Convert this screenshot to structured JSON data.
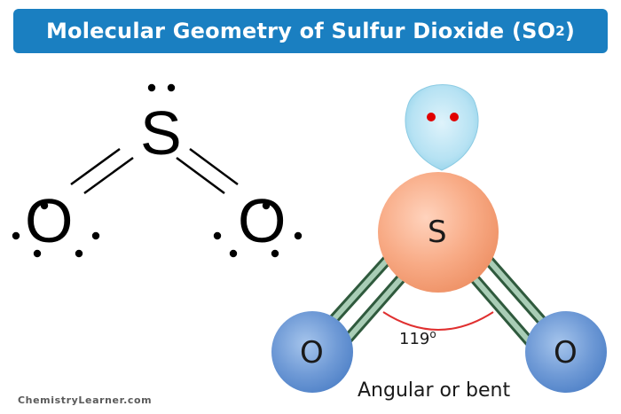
{
  "title": {
    "text": "Molecular Geometry of Sulfur Dioxide (SO",
    "subscript": "2",
    "closing": ")"
  },
  "lewis_structure": {
    "central_atom": "S",
    "left_atom": "O",
    "right_atom": "O"
  },
  "ball_model": {
    "central_atom": "S",
    "left_atom": "O",
    "right_atom": "O",
    "bond_angle": "119",
    "degree_symbol": "o",
    "shape": "Angular or bent"
  },
  "footer": "ChemistryLearner.com",
  "colors": {
    "title_bg": "#1a7fc1",
    "sulfur": "#f5a07a",
    "oxygen": "#5f8fcf",
    "lone_pair_lobe": "#a8dcef",
    "lone_pair_dots": "#e10000",
    "bond": "#5a8a6a",
    "angle_arc": "#e03030"
  }
}
